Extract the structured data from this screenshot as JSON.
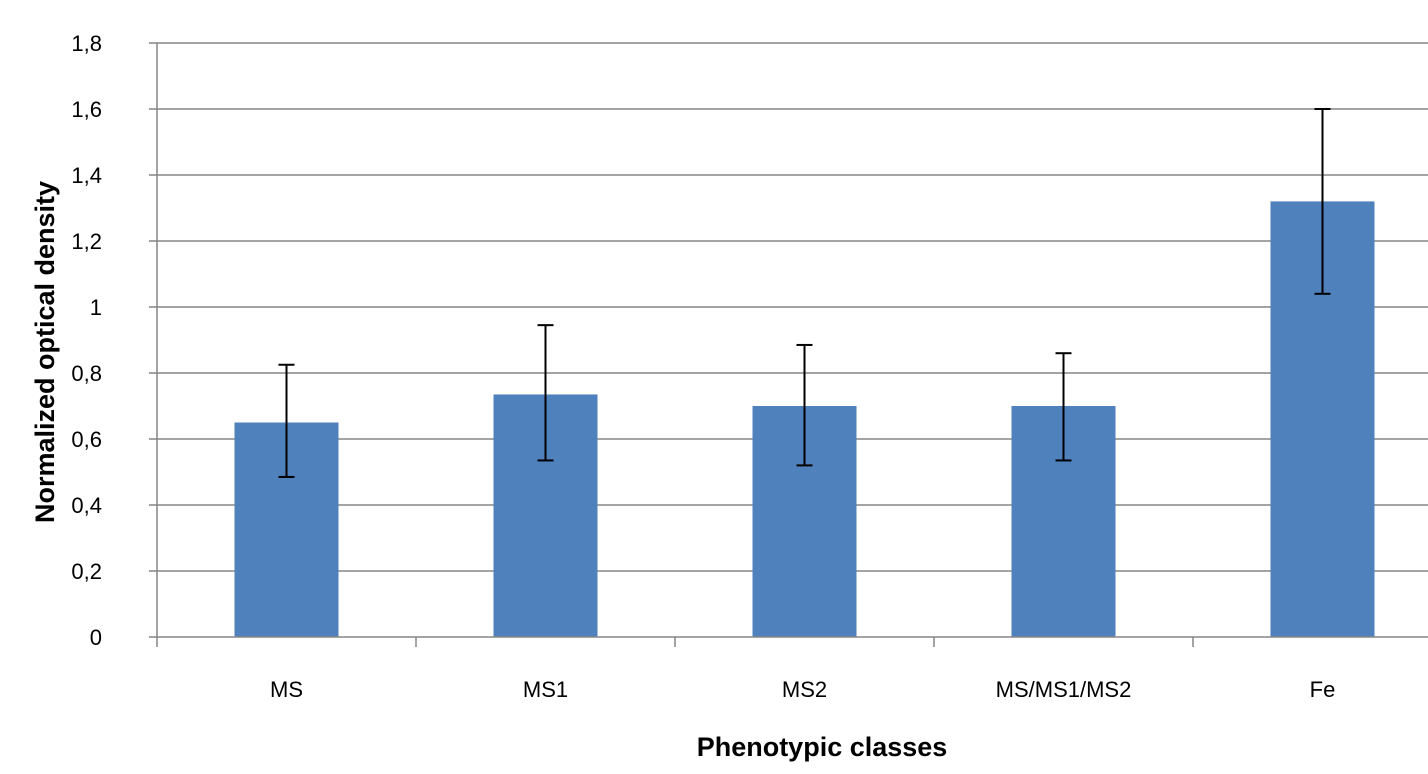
{
  "chart_data": {
    "type": "bar",
    "title": "",
    "xlabel": "Phenotypic classes",
    "ylabel": "Normalized optical density",
    "categories": [
      "MS",
      "MS1",
      "MS2",
      "MS/MS1/MS2",
      "Fe"
    ],
    "values": [
      0.65,
      0.735,
      0.7,
      0.7,
      1.32
    ],
    "error_low": [
      0.485,
      0.535,
      0.52,
      0.535,
      1.04
    ],
    "error_high": [
      0.825,
      0.945,
      0.885,
      0.86,
      1.6
    ],
    "ylim": [
      0,
      1.8
    ],
    "yticks": [
      "0",
      "0,2",
      "0,4",
      "0,6",
      "0,8",
      "1",
      "1,2",
      "1,4",
      "1,6",
      "1,8"
    ],
    "grid": true,
    "legend": "none",
    "colors": {
      "bar": "#4f81bd",
      "grid": "#868686",
      "error": "#000000",
      "last_tick_label": "#595959"
    }
  }
}
